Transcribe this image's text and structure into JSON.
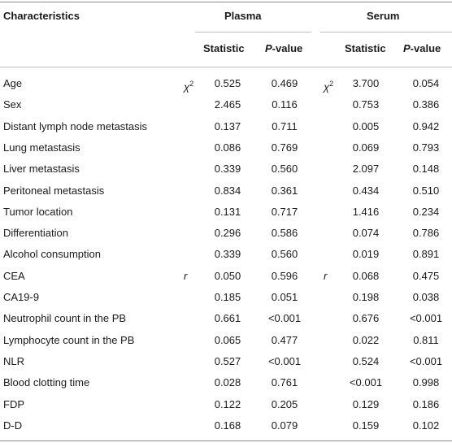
{
  "header": {
    "characteristics": "Characteristics",
    "plasma": "Plasma",
    "serum": "Serum",
    "statistic": "Statistic",
    "p_letter": "P",
    "p_suffix": "-value"
  },
  "rows": [
    {
      "label": "Age",
      "test_plasma": "χ",
      "test_serum": "χ",
      "sup": "2",
      "p_stat": "0.525",
      "p_p": "0.469",
      "s_stat": "3.700",
      "s_p": "0.054"
    },
    {
      "label": "Sex",
      "p_stat": "2.465",
      "p_p": "0.116",
      "s_stat": "0.753",
      "s_p": "0.386"
    },
    {
      "label": "Distant lymph node metastasis",
      "p_stat": "0.137",
      "p_p": "0.711",
      "s_stat": "0.005",
      "s_p": "0.942"
    },
    {
      "label": "Lung metastasis",
      "p_stat": "0.086",
      "p_p": "0.769",
      "s_stat": "0.069",
      "s_p": "0.793"
    },
    {
      "label": "Liver metastasis",
      "p_stat": "0.339",
      "p_p": "0.560",
      "s_stat": "2.097",
      "s_p": "0.148"
    },
    {
      "label": "Peritoneal metastasis",
      "p_stat": "0.834",
      "p_p": "0.361",
      "s_stat": "0.434",
      "s_p": "0.510"
    },
    {
      "label": "Tumor location",
      "p_stat": "0.131",
      "p_p": "0.717",
      "s_stat": "1.416",
      "s_p": "0.234"
    },
    {
      "label": "Differentiation",
      "p_stat": "0.296",
      "p_p": "0.586",
      "s_stat": "0.074",
      "s_p": "0.786"
    },
    {
      "label": "Alcohol consumption",
      "p_stat": "0.339",
      "p_p": "0.560",
      "s_stat": "0.019",
      "s_p": "0.891"
    },
    {
      "label": "CEA",
      "test_plasma": "r",
      "test_serum": "r",
      "p_stat": "0.050",
      "p_p": "0.596",
      "s_stat": "0.068",
      "s_p": "0.475"
    },
    {
      "label": "CA19-9",
      "p_stat": "0.185",
      "p_p": "0.051",
      "s_stat": "0.198",
      "s_p": "0.038"
    },
    {
      "label": "Neutrophil count in the PB",
      "p_stat": "0.661",
      "p_p": "<0.001",
      "s_stat": "0.676",
      "s_p": "<0.001"
    },
    {
      "label": "Lymphocyte count in the PB",
      "p_stat": "0.065",
      "p_p": "0.477",
      "s_stat": "0.022",
      "s_p": "0.811"
    },
    {
      "label": "NLR",
      "p_stat": "0.527",
      "p_p": "<0.001",
      "s_stat": "0.524",
      "s_p": "<0.001"
    },
    {
      "label": "Blood clotting time",
      "p_stat": "0.028",
      "p_p": "0.761",
      "s_stat": "<0.001",
      "s_p": "0.998"
    },
    {
      "label": "FDP",
      "p_stat": "0.122",
      "p_p": "0.205",
      "s_stat": "0.129",
      "s_p": "0.186"
    },
    {
      "label": "D-D",
      "p_stat": "0.168",
      "p_p": "0.079",
      "s_stat": "0.159",
      "s_p": "0.102"
    }
  ]
}
